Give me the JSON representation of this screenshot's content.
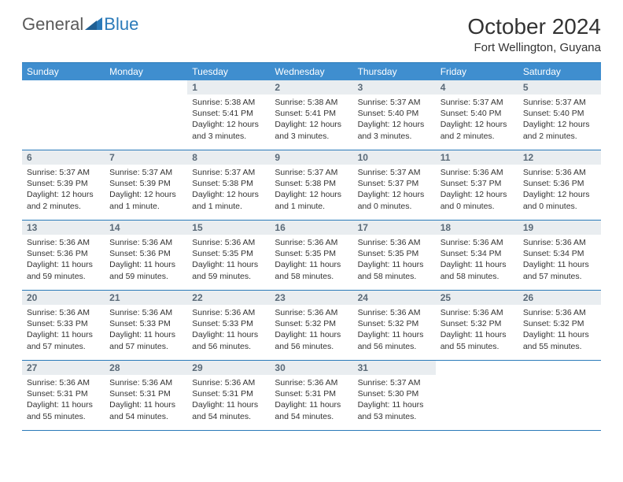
{
  "logo": {
    "text_general": "General",
    "text_blue": "Blue"
  },
  "header": {
    "month_title": "October 2024",
    "location": "Fort Wellington, Guyana"
  },
  "colors": {
    "header_bg": "#3f8ecf",
    "border": "#2a7ab9",
    "daynum_bg": "#e9edf0",
    "daynum_text": "#5a6a78",
    "body_text": "#333333"
  },
  "day_names": [
    "Sunday",
    "Monday",
    "Tuesday",
    "Wednesday",
    "Thursday",
    "Friday",
    "Saturday"
  ],
  "weeks": [
    [
      null,
      null,
      {
        "n": "1",
        "sr": "Sunrise: 5:38 AM",
        "ss": "Sunset: 5:41 PM",
        "dl": "Daylight: 12 hours and 3 minutes."
      },
      {
        "n": "2",
        "sr": "Sunrise: 5:38 AM",
        "ss": "Sunset: 5:41 PM",
        "dl": "Daylight: 12 hours and 3 minutes."
      },
      {
        "n": "3",
        "sr": "Sunrise: 5:37 AM",
        "ss": "Sunset: 5:40 PM",
        "dl": "Daylight: 12 hours and 3 minutes."
      },
      {
        "n": "4",
        "sr": "Sunrise: 5:37 AM",
        "ss": "Sunset: 5:40 PM",
        "dl": "Daylight: 12 hours and 2 minutes."
      },
      {
        "n": "5",
        "sr": "Sunrise: 5:37 AM",
        "ss": "Sunset: 5:40 PM",
        "dl": "Daylight: 12 hours and 2 minutes."
      }
    ],
    [
      {
        "n": "6",
        "sr": "Sunrise: 5:37 AM",
        "ss": "Sunset: 5:39 PM",
        "dl": "Daylight: 12 hours and 2 minutes."
      },
      {
        "n": "7",
        "sr": "Sunrise: 5:37 AM",
        "ss": "Sunset: 5:39 PM",
        "dl": "Daylight: 12 hours and 1 minute."
      },
      {
        "n": "8",
        "sr": "Sunrise: 5:37 AM",
        "ss": "Sunset: 5:38 PM",
        "dl": "Daylight: 12 hours and 1 minute."
      },
      {
        "n": "9",
        "sr": "Sunrise: 5:37 AM",
        "ss": "Sunset: 5:38 PM",
        "dl": "Daylight: 12 hours and 1 minute."
      },
      {
        "n": "10",
        "sr": "Sunrise: 5:37 AM",
        "ss": "Sunset: 5:37 PM",
        "dl": "Daylight: 12 hours and 0 minutes."
      },
      {
        "n": "11",
        "sr": "Sunrise: 5:36 AM",
        "ss": "Sunset: 5:37 PM",
        "dl": "Daylight: 12 hours and 0 minutes."
      },
      {
        "n": "12",
        "sr": "Sunrise: 5:36 AM",
        "ss": "Sunset: 5:36 PM",
        "dl": "Daylight: 12 hours and 0 minutes."
      }
    ],
    [
      {
        "n": "13",
        "sr": "Sunrise: 5:36 AM",
        "ss": "Sunset: 5:36 PM",
        "dl": "Daylight: 11 hours and 59 minutes."
      },
      {
        "n": "14",
        "sr": "Sunrise: 5:36 AM",
        "ss": "Sunset: 5:36 PM",
        "dl": "Daylight: 11 hours and 59 minutes."
      },
      {
        "n": "15",
        "sr": "Sunrise: 5:36 AM",
        "ss": "Sunset: 5:35 PM",
        "dl": "Daylight: 11 hours and 59 minutes."
      },
      {
        "n": "16",
        "sr": "Sunrise: 5:36 AM",
        "ss": "Sunset: 5:35 PM",
        "dl": "Daylight: 11 hours and 58 minutes."
      },
      {
        "n": "17",
        "sr": "Sunrise: 5:36 AM",
        "ss": "Sunset: 5:35 PM",
        "dl": "Daylight: 11 hours and 58 minutes."
      },
      {
        "n": "18",
        "sr": "Sunrise: 5:36 AM",
        "ss": "Sunset: 5:34 PM",
        "dl": "Daylight: 11 hours and 58 minutes."
      },
      {
        "n": "19",
        "sr": "Sunrise: 5:36 AM",
        "ss": "Sunset: 5:34 PM",
        "dl": "Daylight: 11 hours and 57 minutes."
      }
    ],
    [
      {
        "n": "20",
        "sr": "Sunrise: 5:36 AM",
        "ss": "Sunset: 5:33 PM",
        "dl": "Daylight: 11 hours and 57 minutes."
      },
      {
        "n": "21",
        "sr": "Sunrise: 5:36 AM",
        "ss": "Sunset: 5:33 PM",
        "dl": "Daylight: 11 hours and 57 minutes."
      },
      {
        "n": "22",
        "sr": "Sunrise: 5:36 AM",
        "ss": "Sunset: 5:33 PM",
        "dl": "Daylight: 11 hours and 56 minutes."
      },
      {
        "n": "23",
        "sr": "Sunrise: 5:36 AM",
        "ss": "Sunset: 5:32 PM",
        "dl": "Daylight: 11 hours and 56 minutes."
      },
      {
        "n": "24",
        "sr": "Sunrise: 5:36 AM",
        "ss": "Sunset: 5:32 PM",
        "dl": "Daylight: 11 hours and 56 minutes."
      },
      {
        "n": "25",
        "sr": "Sunrise: 5:36 AM",
        "ss": "Sunset: 5:32 PM",
        "dl": "Daylight: 11 hours and 55 minutes."
      },
      {
        "n": "26",
        "sr": "Sunrise: 5:36 AM",
        "ss": "Sunset: 5:32 PM",
        "dl": "Daylight: 11 hours and 55 minutes."
      }
    ],
    [
      {
        "n": "27",
        "sr": "Sunrise: 5:36 AM",
        "ss": "Sunset: 5:31 PM",
        "dl": "Daylight: 11 hours and 55 minutes."
      },
      {
        "n": "28",
        "sr": "Sunrise: 5:36 AM",
        "ss": "Sunset: 5:31 PM",
        "dl": "Daylight: 11 hours and 54 minutes."
      },
      {
        "n": "29",
        "sr": "Sunrise: 5:36 AM",
        "ss": "Sunset: 5:31 PM",
        "dl": "Daylight: 11 hours and 54 minutes."
      },
      {
        "n": "30",
        "sr": "Sunrise: 5:36 AM",
        "ss": "Sunset: 5:31 PM",
        "dl": "Daylight: 11 hours and 54 minutes."
      },
      {
        "n": "31",
        "sr": "Sunrise: 5:37 AM",
        "ss": "Sunset: 5:30 PM",
        "dl": "Daylight: 11 hours and 53 minutes."
      },
      null,
      null
    ]
  ]
}
